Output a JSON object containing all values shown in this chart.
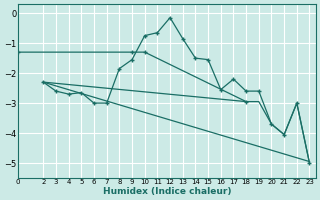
{
  "background_color": "#cceae6",
  "grid_color": "#ffffff",
  "line_color": "#1a6e65",
  "xlabel": "Humidex (Indice chaleur)",
  "ylim": [
    -5.5,
    0.3
  ],
  "xlim": [
    0,
    23.5
  ],
  "yticks": [
    0,
    -1,
    -2,
    -3,
    -4,
    -5
  ],
  "xticks": [
    0,
    2,
    3,
    4,
    5,
    6,
    7,
    8,
    9,
    10,
    11,
    12,
    13,
    14,
    15,
    16,
    17,
    18,
    19,
    20,
    21,
    22,
    23
  ],
  "line1_x": [
    0,
    9,
    10,
    18
  ],
  "line1_y": [
    -1.3,
    -1.3,
    -1.3,
    -2.95
  ],
  "line2_x": [
    2,
    3,
    4,
    5,
    6,
    7,
    8,
    9,
    10,
    11,
    12,
    13,
    14,
    15,
    16,
    17,
    18,
    19,
    20,
    21,
    22,
    23
  ],
  "line2_y": [
    -2.3,
    -2.6,
    -2.7,
    -2.65,
    -3.0,
    -3.0,
    -1.85,
    -1.55,
    -0.75,
    -0.65,
    -0.15,
    -0.85,
    -1.5,
    -1.55,
    -2.55,
    -2.2,
    -2.6,
    -2.6,
    -3.7,
    -4.05,
    -3.0,
    -5.0
  ],
  "line3_x": [
    2,
    23
  ],
  "line3_y": [
    -2.3,
    -4.95
  ],
  "line4_x": [
    2,
    18,
    19,
    20,
    21,
    22,
    23
  ],
  "line4_y": [
    -2.3,
    -2.95,
    -2.95,
    -3.7,
    -4.05,
    -3.0,
    -5.0
  ]
}
